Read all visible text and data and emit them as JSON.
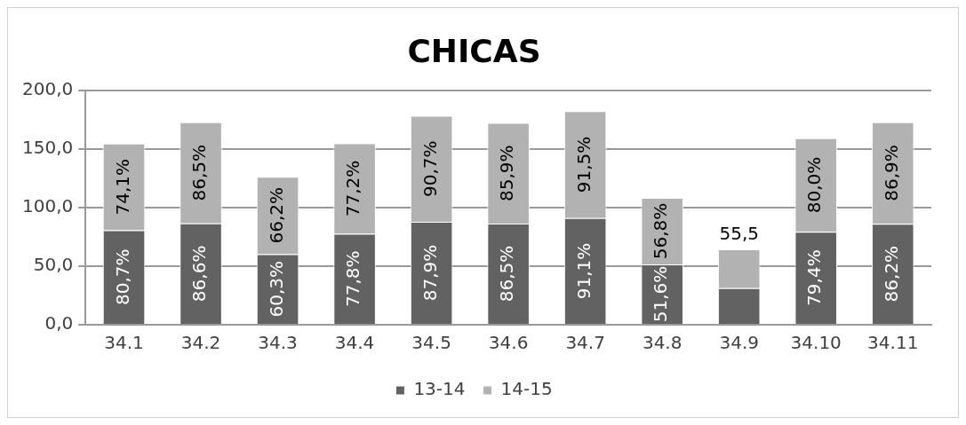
{
  "chart_data": {
    "type": "bar",
    "title": "CHICAS",
    "stacked": true,
    "categories": [
      "34.1",
      "34.2",
      "34.3",
      "34.4",
      "34.5",
      "34.6",
      "34.7",
      "34.8",
      "34.9",
      "34.10",
      "34.11"
    ],
    "series": [
      {
        "name": "13-14",
        "color": "#626262",
        "values": [
          80.7,
          86.6,
          60.3,
          77.8,
          87.9,
          86.5,
          91.1,
          51.6,
          31.2,
          79.4,
          86.2
        ],
        "value_labels": [
          "80,7%",
          "86,6%",
          "60,3%",
          "77,8%",
          "87,9%",
          "86,5%",
          "91,1%",
          "51,6%",
          null,
          "79,4%",
          "86,2%"
        ]
      },
      {
        "name": "14-15",
        "color": "#b2b2b2",
        "values": [
          74.1,
          86.5,
          66.2,
          77.2,
          90.7,
          85.9,
          91.5,
          56.8,
          33.2,
          80.0,
          86.9
        ],
        "value_labels": [
          "74,1%",
          "86,5%",
          "66,2%",
          "77,2%",
          "90,7%",
          "85,9%",
          "91,5%",
          "56,8%",
          null,
          "80,0%",
          "86,9%"
        ]
      }
    ],
    "annotations": [
      {
        "text": "55,5",
        "x": "34.9",
        "y": 64.4
      }
    ],
    "ylim": [
      0,
      200
    ],
    "yticks": [
      {
        "value": 0,
        "label": "0,0"
      },
      {
        "value": 50,
        "label": "50,0"
      },
      {
        "value": 100,
        "label": "100,0"
      },
      {
        "value": 150,
        "label": "150,0"
      },
      {
        "value": 200,
        "label": "200,0"
      }
    ],
    "grid": "y",
    "legend": "bottom"
  }
}
